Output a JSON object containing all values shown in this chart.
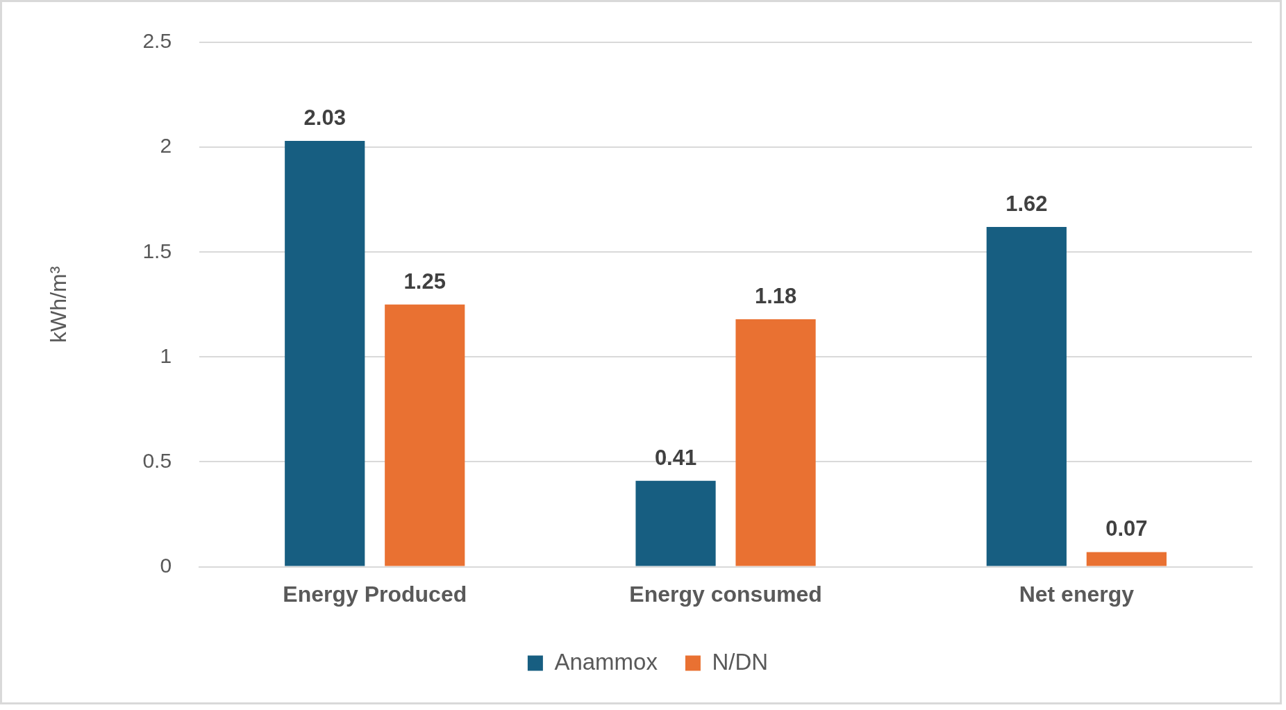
{
  "chart_data": {
    "type": "bar",
    "ylabel": "kWh/m³",
    "categories": [
      "Energy Produced",
      "Energy consumed",
      "Net energy"
    ],
    "series": [
      {
        "name": "Anammox",
        "color": "#175e81",
        "values": [
          2.03,
          0.41,
          1.62
        ]
      },
      {
        "name": "N/DN",
        "color": "#e97132",
        "values": [
          1.25,
          1.18,
          0.07
        ]
      }
    ],
    "ylim": [
      0,
      2.5
    ],
    "yticks": [
      0,
      0.5,
      1,
      1.5,
      2,
      2.5
    ],
    "grid": "y",
    "legend": "bottom",
    "data_labels": true
  }
}
